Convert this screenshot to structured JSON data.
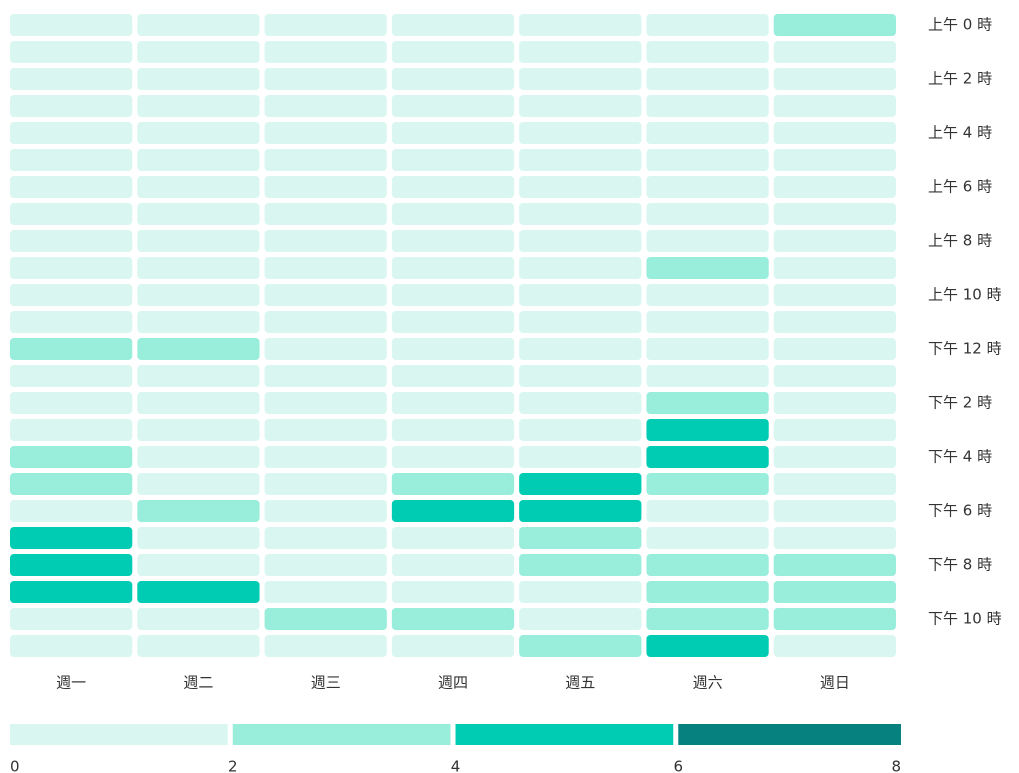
{
  "chart_data": {
    "type": "heatmap",
    "x_categories": [
      "週一",
      "週二",
      "週三",
      "週四",
      "週五",
      "週六",
      "週日"
    ],
    "y_categories": [
      "上午 0 時",
      null,
      "上午 2 時",
      null,
      "上午 4 時",
      null,
      "上午 6 時",
      null,
      "上午 8 時",
      null,
      "上午 10 時",
      null,
      "下午 12 時",
      null,
      "下午 2 時",
      null,
      "下午 4 時",
      null,
      "下午 6 時",
      null,
      "下午 8 時",
      null,
      "下午 10 時",
      null
    ],
    "values": [
      [
        0,
        0,
        0,
        0,
        0,
        0,
        2
      ],
      [
        0,
        0,
        0,
        0,
        0,
        0,
        0
      ],
      [
        0,
        0,
        0,
        0,
        0,
        0,
        0
      ],
      [
        0,
        0,
        0,
        0,
        0,
        0,
        0
      ],
      [
        0,
        0,
        0,
        0,
        0,
        0,
        0
      ],
      [
        0,
        0,
        0,
        0,
        0,
        0,
        0
      ],
      [
        0,
        0,
        0,
        0,
        0,
        0,
        0
      ],
      [
        0,
        0,
        0,
        0,
        0,
        0,
        0
      ],
      [
        0,
        0,
        0,
        0,
        0,
        0,
        0
      ],
      [
        0,
        0,
        0,
        0,
        0,
        2,
        0
      ],
      [
        0,
        0,
        0,
        0,
        0,
        0,
        0
      ],
      [
        0,
        0,
        0,
        0,
        0,
        0,
        0
      ],
      [
        2,
        2,
        0,
        0,
        0,
        0,
        0
      ],
      [
        0,
        0,
        0,
        0,
        0,
        0,
        0
      ],
      [
        0,
        0,
        0,
        0,
        0,
        2,
        0
      ],
      [
        0,
        0,
        0,
        0,
        0,
        4,
        0
      ],
      [
        2,
        0,
        0,
        0,
        0,
        4,
        0
      ],
      [
        2,
        0,
        0,
        2,
        4,
        2,
        0
      ],
      [
        0,
        2,
        0,
        4,
        4,
        0,
        0
      ],
      [
        4,
        0,
        0,
        0,
        2,
        0,
        0
      ],
      [
        4,
        0,
        0,
        0,
        2,
        2,
        2
      ],
      [
        4,
        4,
        0,
        0,
        0,
        2,
        2
      ],
      [
        0,
        0,
        2,
        2,
        0,
        2,
        2
      ],
      [
        0,
        0,
        0,
        0,
        2,
        4,
        0
      ]
    ],
    "legend": {
      "bins": [
        0,
        2,
        4,
        6,
        8
      ],
      "colors": [
        "#d9f7f0",
        "#98eedb",
        "#00ccb3",
        "#078080"
      ]
    }
  }
}
